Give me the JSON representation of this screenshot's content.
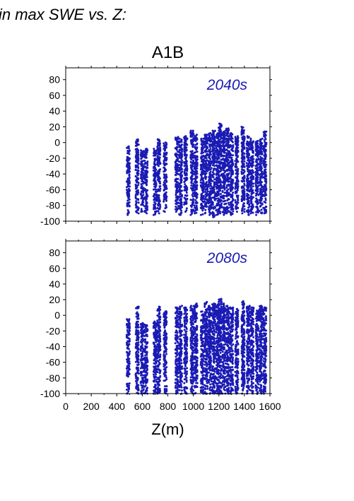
{
  "header_text": "in max SWE vs. Z:",
  "title": "A1B",
  "colors": {
    "points": "#1a1ab4",
    "axes": "#000000",
    "background": "#ffffff"
  },
  "chart_data": [
    {
      "type": "scatter",
      "panel_label": "2040s",
      "xlim": [
        0,
        1600
      ],
      "ylim": [
        -100,
        95
      ],
      "x_ticks": [],
      "y_ticks": [
        -100,
        -80,
        -60,
        -40,
        -20,
        0,
        20,
        40,
        60,
        80
      ],
      "grid": false,
      "series": [
        {
          "clusters": [
            {
              "x": 490,
              "ymin": -92,
              "ymax": -5
            },
            {
              "x": 560,
              "ymin": -90,
              "ymax": 4
            },
            {
              "x": 600,
              "ymin": -88,
              "ymax": -10
            },
            {
              "x": 630,
              "ymin": -90,
              "ymax": -8
            },
            {
              "x": 700,
              "ymin": -92,
              "ymax": -8
            },
            {
              "x": 730,
              "ymin": -90,
              "ymax": 4
            },
            {
              "x": 780,
              "ymin": -88,
              "ymax": 0
            },
            {
              "x": 870,
              "ymin": -88,
              "ymax": 7
            },
            {
              "x": 900,
              "ymin": -92,
              "ymax": 5
            },
            {
              "x": 940,
              "ymin": -88,
              "ymax": 8
            },
            {
              "x": 990,
              "ymin": -92,
              "ymax": 15
            },
            {
              "x": 1020,
              "ymin": -90,
              "ymax": 10
            },
            {
              "x": 1070,
              "ymin": -92,
              "ymax": 5
            },
            {
              "x": 1100,
              "ymin": -90,
              "ymax": 10
            },
            {
              "x": 1130,
              "ymin": -92,
              "ymax": 12
            },
            {
              "x": 1160,
              "ymin": -95,
              "ymax": 15
            },
            {
              "x": 1190,
              "ymin": -92,
              "ymax": 12
            },
            {
              "x": 1210,
              "ymin": -90,
              "ymax": 24
            },
            {
              "x": 1240,
              "ymin": -92,
              "ymax": 15
            },
            {
              "x": 1270,
              "ymin": -90,
              "ymax": 18
            },
            {
              "x": 1300,
              "ymin": -92,
              "ymax": 12
            },
            {
              "x": 1340,
              "ymin": -88,
              "ymax": 8
            },
            {
              "x": 1390,
              "ymin": -90,
              "ymax": 20
            },
            {
              "x": 1430,
              "ymin": -92,
              "ymax": 8
            },
            {
              "x": 1460,
              "ymin": -90,
              "ymax": 5
            },
            {
              "x": 1500,
              "ymin": -92,
              "ymax": 2
            },
            {
              "x": 1530,
              "ymin": -90,
              "ymax": 5
            },
            {
              "x": 1560,
              "ymin": -90,
              "ymax": 14
            }
          ]
        }
      ]
    },
    {
      "type": "scatter",
      "panel_label": "2080s",
      "xlim": [
        0,
        1600
      ],
      "ylim": [
        -100,
        95
      ],
      "x_ticks": [
        0,
        200,
        400,
        600,
        800,
        1000,
        1200,
        1400,
        1600
      ],
      "y_ticks": [
        -100,
        -80,
        -60,
        -40,
        -20,
        0,
        20,
        40,
        60,
        80
      ],
      "xlabel": "Z(m)",
      "grid": false,
      "series": [
        {
          "clusters": [
            {
              "x": 490,
              "ymin": -100,
              "ymax": -5
            },
            {
              "x": 560,
              "ymin": -100,
              "ymax": 11
            },
            {
              "x": 600,
              "ymin": -100,
              "ymax": -10
            },
            {
              "x": 630,
              "ymin": -100,
              "ymax": -12
            },
            {
              "x": 700,
              "ymin": -100,
              "ymax": -8
            },
            {
              "x": 730,
              "ymin": -100,
              "ymax": 11
            },
            {
              "x": 780,
              "ymin": -100,
              "ymax": 5
            },
            {
              "x": 870,
              "ymin": -100,
              "ymax": 10
            },
            {
              "x": 900,
              "ymin": -100,
              "ymax": 12
            },
            {
              "x": 940,
              "ymin": -100,
              "ymax": 10
            },
            {
              "x": 990,
              "ymin": -100,
              "ymax": 12
            },
            {
              "x": 1020,
              "ymin": -100,
              "ymax": 15
            },
            {
              "x": 1070,
              "ymin": -100,
              "ymax": 5
            },
            {
              "x": 1100,
              "ymin": -100,
              "ymax": 17
            },
            {
              "x": 1130,
              "ymin": -100,
              "ymax": 12
            },
            {
              "x": 1160,
              "ymin": -100,
              "ymax": 15
            },
            {
              "x": 1190,
              "ymin": -100,
              "ymax": 14
            },
            {
              "x": 1210,
              "ymin": -100,
              "ymax": 21
            },
            {
              "x": 1240,
              "ymin": -100,
              "ymax": 15
            },
            {
              "x": 1270,
              "ymin": -100,
              "ymax": 12
            },
            {
              "x": 1300,
              "ymin": -100,
              "ymax": 10
            },
            {
              "x": 1340,
              "ymin": -100,
              "ymax": 8
            },
            {
              "x": 1390,
              "ymin": -100,
              "ymax": 18
            },
            {
              "x": 1430,
              "ymin": -100,
              "ymax": 12
            },
            {
              "x": 1460,
              "ymin": -100,
              "ymax": 10
            },
            {
              "x": 1500,
              "ymin": -100,
              "ymax": 6
            },
            {
              "x": 1530,
              "ymin": -100,
              "ymax": 12
            },
            {
              "x": 1560,
              "ymin": -100,
              "ymax": 10
            }
          ]
        }
      ]
    }
  ]
}
